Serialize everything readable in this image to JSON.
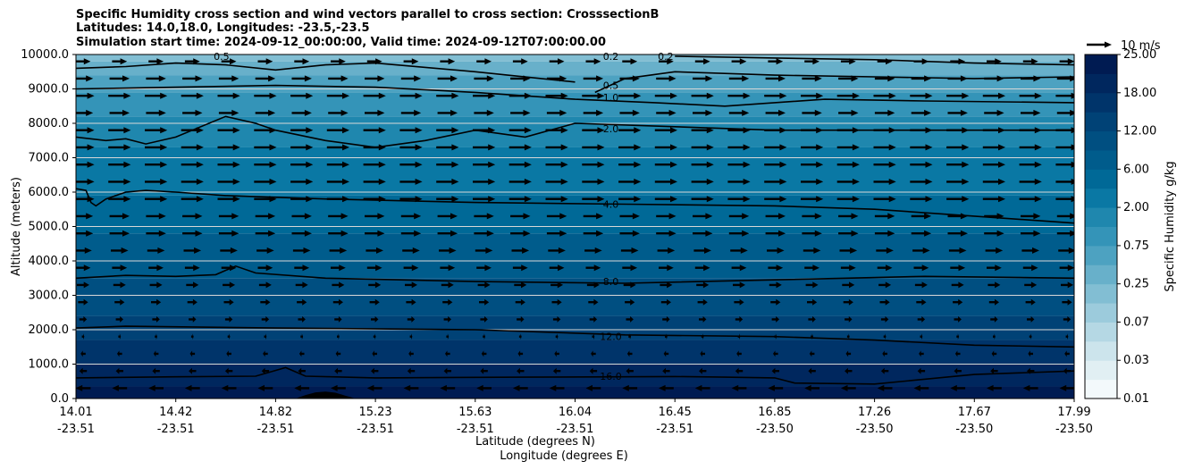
{
  "chart_data": {
    "type": "contour",
    "title_lines": [
      "Specific Humidity cross section and wind vectors parallel to cross section: CrosssectionB",
      "Latitudes: 14.0,18.0, Longitudes: -23.5,-23.5",
      "Simulation start time: 2024-09-12_00:00:00, Valid time: 2024-09-12T07:00:00.00"
    ],
    "ylabel": "Altitude (meters)",
    "xlabel_lat": "Latitude (degrees N)",
    "xlabel_lon": "Longitude (degrees E)",
    "ylim": [
      0,
      10000
    ],
    "y_ticks": [
      "0.0",
      "1000.0",
      "2000.0",
      "3000.0",
      "4000.0",
      "5000.0",
      "6000.0",
      "7000.0",
      "8000.0",
      "9000.0",
      "10000.0"
    ],
    "x_ticks": [
      {
        "lat": "14.01",
        "lon": "-23.51"
      },
      {
        "lat": "14.42",
        "lon": "-23.51"
      },
      {
        "lat": "14.82",
        "lon": "-23.51"
      },
      {
        "lat": "15.23",
        "lon": "-23.51"
      },
      {
        "lat": "15.63",
        "lon": "-23.51"
      },
      {
        "lat": "16.04",
        "lon": "-23.51"
      },
      {
        "lat": "16.45",
        "lon": "-23.51"
      },
      {
        "lat": "16.85",
        "lon": "-23.50"
      },
      {
        "lat": "17.26",
        "lon": "-23.50"
      },
      {
        "lat": "17.67",
        "lon": "-23.50"
      },
      {
        "lat": "17.99",
        "lon": "-23.50"
      }
    ],
    "colorbar": {
      "label": "Specific Humidity g/kg",
      "levels": [
        0.01,
        0.02,
        0.03,
        0.05,
        0.07,
        0.1,
        0.25,
        0.5,
        0.75,
        1.0,
        2.0,
        4.0,
        6.0,
        8.0,
        12.0,
        16.0,
        18.0,
        20.0,
        25.0
      ],
      "tick_labels": [
        "0.01",
        "0.03",
        "0.07",
        "0.25",
        "0.75",
        "2.00",
        "6.00",
        "12.00",
        "18.00",
        "25.00"
      ],
      "tick_level_indices": [
        0,
        2,
        4,
        6,
        8,
        10,
        12,
        14,
        16,
        18
      ]
    },
    "contours": [
      {
        "label": "16.0",
        "level": 16.0,
        "x": [
          0,
          0.1,
          0.18,
          0.21,
          0.23,
          0.3,
          0.45,
          0.6,
          0.65,
          0.7,
          0.72,
          0.8,
          0.9,
          1.0
        ],
        "y": [
          600,
          630,
          650,
          900,
          650,
          600,
          620,
          640,
          620,
          600,
          450,
          420,
          700,
          800
        ]
      },
      {
        "label": "12.0",
        "level": 12.0,
        "x": [
          0,
          0.05,
          0.2,
          0.4,
          0.55,
          0.7,
          0.8,
          0.9,
          1.0
        ],
        "y": [
          2050,
          2100,
          2050,
          2000,
          1850,
          1800,
          1700,
          1550,
          1500
        ]
      },
      {
        "label": "8.0",
        "level": 8.0,
        "x": [
          0,
          0.05,
          0.1,
          0.14,
          0.16,
          0.18,
          0.25,
          0.4,
          0.55,
          0.7,
          0.85,
          1.0
        ],
        "y": [
          3500,
          3580,
          3550,
          3600,
          3850,
          3650,
          3500,
          3400,
          3350,
          3450,
          3550,
          3500
        ]
      },
      {
        "label": "4.0",
        "level": 4.0,
        "x": [
          0,
          0.01,
          0.015,
          0.02,
          0.03,
          0.05,
          0.07,
          0.1,
          0.15,
          0.25,
          0.4,
          0.55,
          0.7,
          0.8,
          0.9,
          1.0
        ],
        "y": [
          6100,
          6050,
          5700,
          5600,
          5800,
          6000,
          6050,
          6000,
          5900,
          5800,
          5700,
          5650,
          5600,
          5500,
          5300,
          5100
        ]
      },
      {
        "label": "2.0",
        "level": 2.0,
        "x": [
          0,
          0.03,
          0.05,
          0.07,
          0.1,
          0.15,
          0.18,
          0.2,
          0.25,
          0.3,
          0.35,
          0.4,
          0.45,
          0.5,
          0.6,
          0.7,
          0.85,
          1.0
        ],
        "y": [
          7600,
          7500,
          7550,
          7400,
          7600,
          8200,
          8000,
          7800,
          7500,
          7300,
          7500,
          7800,
          7600,
          8000,
          7900,
          7800,
          7800,
          7800
        ]
      },
      {
        "label": "1.0",
        "level": 1.0,
        "x": [
          0,
          0.1,
          0.2,
          0.3,
          0.4,
          0.5,
          0.58,
          0.65,
          0.75,
          0.85,
          1.0
        ],
        "y": [
          9000,
          9050,
          9100,
          9050,
          8900,
          8700,
          8600,
          8500,
          8700,
          8650,
          8600
        ]
      },
      {
        "label": "0.5",
        "level": 0.5,
        "x": [
          0,
          0.05,
          0.1,
          0.15,
          0.2,
          0.25,
          0.3,
          0.4,
          0.5
        ],
        "y": [
          9600,
          9650,
          9750,
          9700,
          9550,
          9700,
          9750,
          9500,
          9200
        ]
      },
      {
        "label": "0.5",
        "level": 0.5,
        "x": [
          0.52,
          0.55,
          0.6,
          0.7,
          0.8,
          0.9,
          1.0
        ],
        "y": [
          8900,
          9300,
          9500,
          9400,
          9350,
          9300,
          9350
        ]
      },
      {
        "label": "0.2",
        "level": 0.2,
        "x": [
          0.6,
          0.7,
          0.8,
          0.9,
          1.0
        ],
        "y": [
          9950,
          9900,
          9850,
          9750,
          9700
        ]
      }
    ],
    "inline_contour_labels": [
      {
        "text": "0.5",
        "x": 0.11,
        "y": 9950
      },
      {
        "text": "0.2",
        "x": 0.5,
        "y": 9950
      },
      {
        "text": "0.2",
        "x": 0.555,
        "y": 9950
      },
      {
        "text": "0.5",
        "x": 0.5,
        "y": 9100
      },
      {
        "text": "1.0",
        "x": 0.5,
        "y": 8750
      },
      {
        "text": "2.0",
        "x": 0.5,
        "y": 7850
      },
      {
        "text": "4.0",
        "x": 0.5,
        "y": 5650
      },
      {
        "text": "8.0",
        "x": 0.5,
        "y": 3400
      },
      {
        "text": "12.0",
        "x": 0.5,
        "y": 1800
      },
      {
        "text": "16.0",
        "x": 0.5,
        "y": 650
      }
    ],
    "quiver_key": {
      "label": "10 m/s",
      "reference_speed": 10
    },
    "wind_vectors": {
      "rows_altitude": [
        300,
        800,
        1300,
        1800,
        2300,
        2800,
        3300,
        3800,
        4300,
        4800,
        5300,
        5800,
        6300,
        6800,
        7300,
        7800,
        8300,
        8800,
        9300,
        9800
      ],
      "columns": 28,
      "row_speed_ms": [
        -6,
        -3,
        -2,
        1,
        3,
        4,
        5,
        6,
        7,
        8,
        8,
        9,
        9,
        9,
        9,
        9,
        8,
        9,
        8,
        6
      ]
    },
    "terrain": {
      "x": [
        0.22,
        0.23,
        0.24,
        0.25,
        0.26,
        0.27,
        0.28
      ],
      "y": [
        0,
        100,
        180,
        200,
        170,
        80,
        0
      ]
    }
  }
}
